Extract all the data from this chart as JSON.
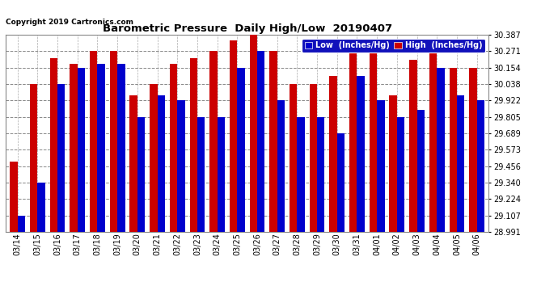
{
  "title": "Barometric Pressure  Daily High/Low  20190407",
  "copyright": "Copyright 2019 Cartronics.com",
  "legend_low": "Low  (Inches/Hg)",
  "legend_high": "High  (Inches/Hg)",
  "low_color": "#0000cc",
  "high_color": "#cc0000",
  "background_color": "#ffffff",
  "plot_bg_color": "#ffffff",
  "grid_color": "#aaaaaa",
  "ylim_min": 28.991,
  "ylim_max": 30.387,
  "yticks": [
    28.991,
    29.107,
    29.224,
    29.34,
    29.456,
    29.573,
    29.689,
    29.805,
    29.922,
    30.038,
    30.154,
    30.271,
    30.387
  ],
  "dates": [
    "03/14",
    "03/15",
    "03/16",
    "03/17",
    "03/18",
    "03/19",
    "03/20",
    "03/21",
    "03/22",
    "03/23",
    "03/24",
    "03/25",
    "03/26",
    "03/27",
    "03/28",
    "03/29",
    "03/30",
    "03/31",
    "04/01",
    "04/02",
    "04/03",
    "04/04",
    "04/05",
    "04/06"
  ],
  "high_values": [
    29.49,
    30.038,
    30.222,
    30.183,
    30.271,
    30.271,
    29.96,
    30.038,
    30.183,
    30.222,
    30.271,
    30.35,
    30.387,
    30.271,
    30.038,
    30.038,
    30.097,
    30.271,
    30.271,
    29.96,
    30.213,
    30.35,
    30.154,
    30.154
  ],
  "low_values": [
    29.107,
    29.34,
    30.038,
    30.154,
    30.183,
    30.183,
    29.805,
    29.96,
    29.922,
    29.805,
    29.805,
    30.154,
    30.271,
    29.922,
    29.805,
    29.805,
    29.689,
    30.097,
    29.922,
    29.805,
    29.855,
    30.154,
    29.96,
    29.922
  ]
}
